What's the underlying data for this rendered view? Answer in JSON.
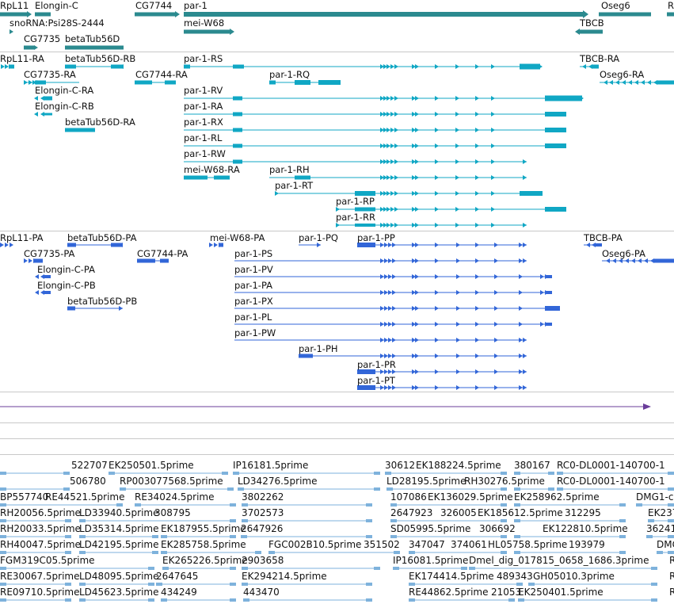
{
  "tracks": [
    {
      "name": "Gene span",
      "color": "#2b8a8f",
      "labels": [
        "RpL11",
        "Elongin-C",
        "CG7744",
        "par-1",
        "Oseg6",
        "R",
        "snoRNA:Psi28S-2444",
        "mei-W68",
        "TBCB",
        "CG7735",
        "betaTub56D"
      ]
    },
    {
      "name": "Transcripts",
      "color": "#10a7c4",
      "labels": [
        "RpL11-RA",
        "betaTub56D-RB",
        "par-1-RS",
        "TBCB-RA",
        "CG7735-RA",
        "CG7744-RA",
        "par-1-RQ",
        "Oseg6-RA",
        "Elongin-C-RA",
        "par-1-RV",
        "Elongin-C-RB",
        "par-1-RA",
        "betaTub56D-RA",
        "par-1-RX",
        "par-1-RL",
        "par-1-RW",
        "mei-W68-RA",
        "par-1-RH",
        "par-1-RT",
        "par-1-RP",
        "par-1-RR"
      ]
    },
    {
      "name": "Proteins",
      "color": "#3266d8",
      "labels": [
        "RpL11-PA",
        "betaTub56D-PA",
        "mei-W68-PA",
        "par-1-PQ",
        "par-1-PP",
        "TBCB-PA",
        "CG7735-PA",
        "CG7744-PA",
        "Oseg6-PA",
        "par-1-PS",
        "Elongin-C-PA",
        "par-1-PV",
        "Elongin-C-PB",
        "par-1-PA",
        "betaTub56D-PB",
        "par-1-PX",
        "par-1-PL",
        "par-1-PW",
        "par-1-PH",
        "par-1-PR",
        "par-1-PT"
      ]
    },
    {
      "name": "Single feature",
      "color": "#6a3d9a",
      "labels": []
    },
    {
      "name": "ESTs",
      "color": "#7eb2dc",
      "labels": [
        "522707",
        "EK250501.5prime",
        "IP16181.5prime",
        "30612",
        "EK188224.5prime",
        "380167",
        "RC0-DL0001-140700-1",
        "506780",
        "RP003077568.5prime",
        "LD34276.5prime",
        "LD28195.5prime",
        "RH30276.5prime",
        "RC0-DL0001-140700-1",
        "BP557740",
        "RE44521.5prime",
        "RE34024.5prime",
        "3802262",
        "107086",
        "EK136029.5prime",
        "EK258962.5prime",
        "DMG1-c",
        "RH20056.5prime",
        "LD33940.5prime",
        "308795",
        "3702573",
        "2647923",
        "326005",
        "EK185612.5prime",
        "312295",
        "EK237",
        "RH20033.5prime",
        "LD35314.5prime",
        "EK187955.5prime",
        "2647926",
        "SD05995.5prime",
        "306692",
        "EK122810.5prime",
        "36241",
        "RH40047.5prime",
        "LD42195.5prime",
        "EK285758.5prime",
        "FGC002B10.5prime",
        "351502",
        "347047",
        "374061",
        "HL05758.5prime",
        "193979",
        "DMG",
        "FGM319C05.5prime",
        "EK265226.5prime",
        "2903658",
        "IP16081.5prime",
        "Dmel_dig_017815_0658_1686.3prime",
        "R",
        "RE30067.5prime",
        "LD48095.5prime",
        "2647645",
        "EK294214.5prime",
        "EK174414.5prime",
        "489343",
        "GH05010.3prime",
        "R",
        "RE09710.5prime",
        "LD45623.5prime",
        "434249",
        "443470",
        "RE44862.5prime",
        "21053",
        "EK250401.5prime",
        "R"
      ]
    }
  ]
}
